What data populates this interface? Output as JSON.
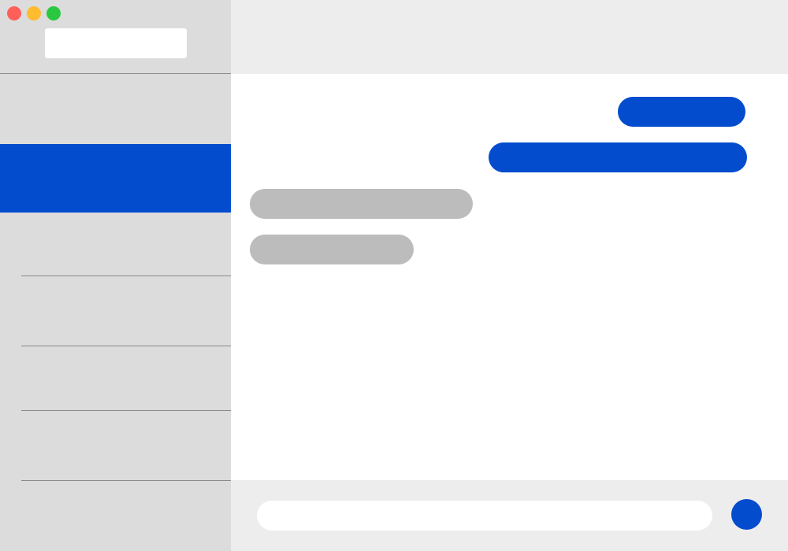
{
  "window": {
    "controls": [
      "close",
      "minimize",
      "zoom"
    ]
  },
  "sidebar": {
    "search": {
      "value": "",
      "placeholder": ""
    },
    "selected_index": 1,
    "conversations": [
      {
        "label": ""
      },
      {
        "label": ""
      },
      {
        "label": ""
      },
      {
        "label": ""
      },
      {
        "label": ""
      },
      {
        "label": ""
      },
      {
        "label": ""
      }
    ]
  },
  "thread": {
    "messages": [
      {
        "direction": "sent",
        "text": ""
      },
      {
        "direction": "sent",
        "text": ""
      },
      {
        "direction": "received",
        "text": ""
      },
      {
        "direction": "received",
        "text": ""
      }
    ]
  },
  "composer": {
    "value": "",
    "placeholder": ""
  },
  "colors": {
    "accent": "#034cce",
    "sidebar_background": "#dcdcdc",
    "header_background": "#ededed",
    "received_bubble": "#bcbcbc",
    "close": "#fe5f58",
    "minimize": "#febc2e",
    "zoom": "#29c840"
  }
}
